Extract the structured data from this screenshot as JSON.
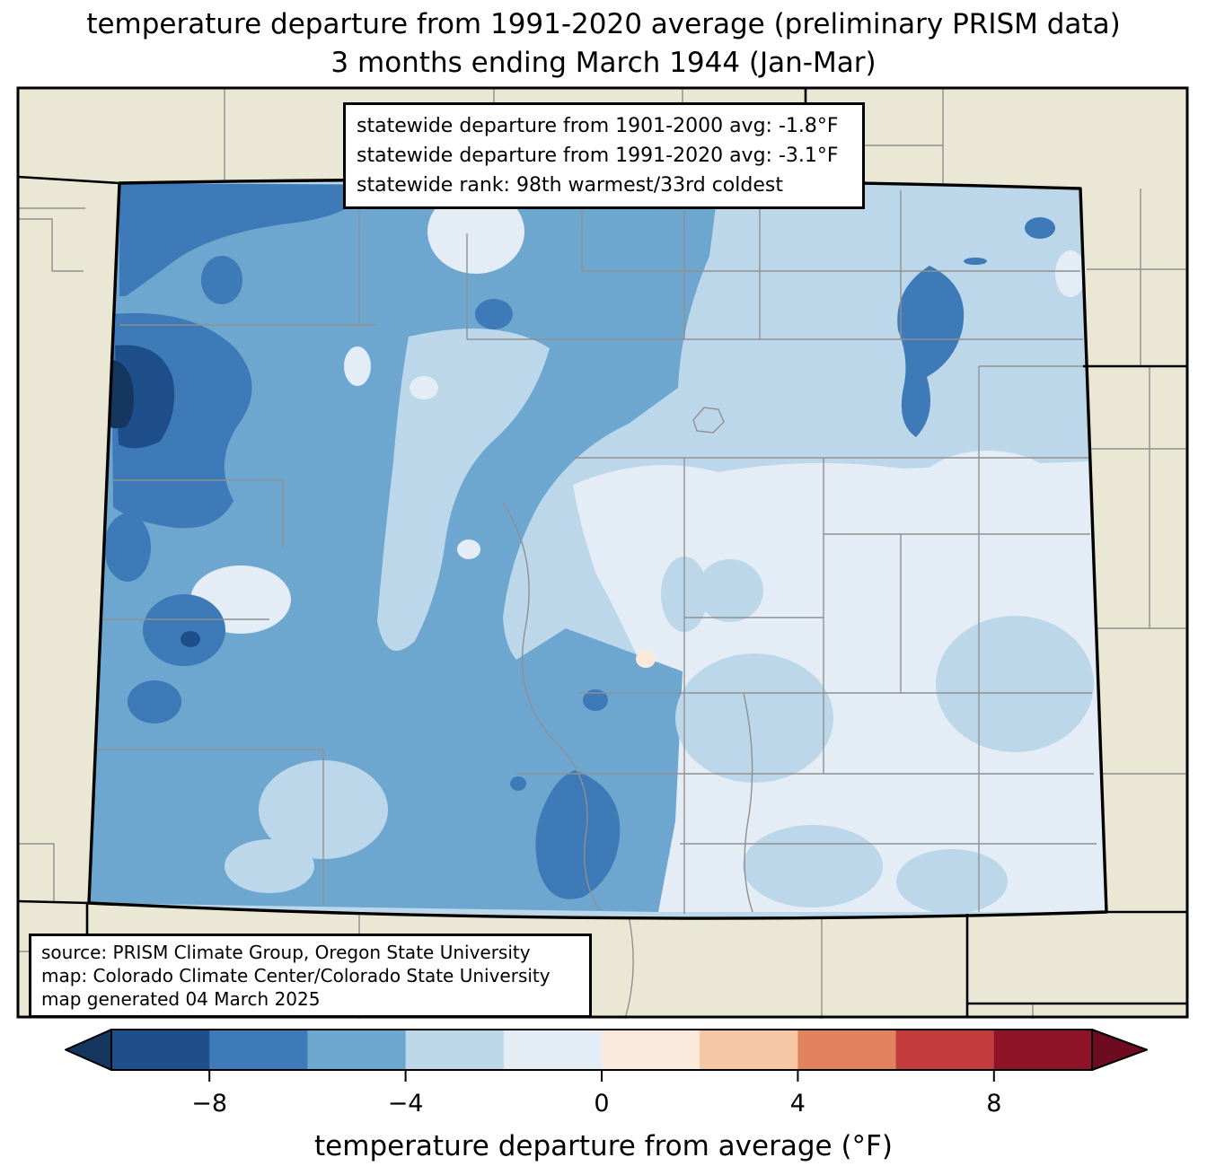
{
  "title": {
    "line1": "temperature departure from 1991-2020 average (preliminary PRISM data)",
    "line2": "3 months ending March 1944 (Jan-Mar)"
  },
  "stats_box": {
    "line1": "statewide departure from 1901-2000 avg: -1.8°F",
    "line2": "statewide departure from 1991-2020 avg: -3.1°F",
    "line3": "statewide rank: 98th warmest/33rd coldest"
  },
  "source_box": {
    "line1": "source: PRISM Climate Group, Oregon State University",
    "line2": "map: Colorado Climate Center/Colorado State University",
    "line3": "map generated 04 March 2025"
  },
  "colorbar": {
    "label": "temperature departure from average (°F)",
    "ticks": [
      "−8",
      "−4",
      "0",
      "4",
      "8"
    ],
    "tick_values": [
      -8,
      -4,
      0,
      4,
      8
    ],
    "value_range": [
      -10,
      10
    ],
    "bin_size": 2,
    "segment_colors": [
      "#1f4f8b",
      "#3d7ab7",
      "#6da7d0",
      "#bcd7ea",
      "#e4edf5",
      "#fbe9dc",
      "#f7c6a4",
      "#e2835f",
      "#c23c3e",
      "#8f1327"
    ],
    "under_color": "#15365e",
    "over_color": "#6d0b20"
  },
  "map": {
    "region": "Colorado",
    "background_color": "#eae8d5",
    "state_border_color": "#000000",
    "county_line_color": "#909090",
    "palette": {
      "under": "#15365e",
      "b1": "#1f4f8b",
      "b2": "#3d7ab7",
      "b3": "#6da7d0",
      "b4": "#bcd7ea",
      "b5": "#e4edf5",
      "b6": "#fbe9dc",
      "b7": "#f7c6a4",
      "b8": "#e2835f",
      "b9": "#c23c3e",
      "b10": "#8f1327",
      "over": "#6d0b20",
      "outside": "#eae8d5"
    }
  }
}
